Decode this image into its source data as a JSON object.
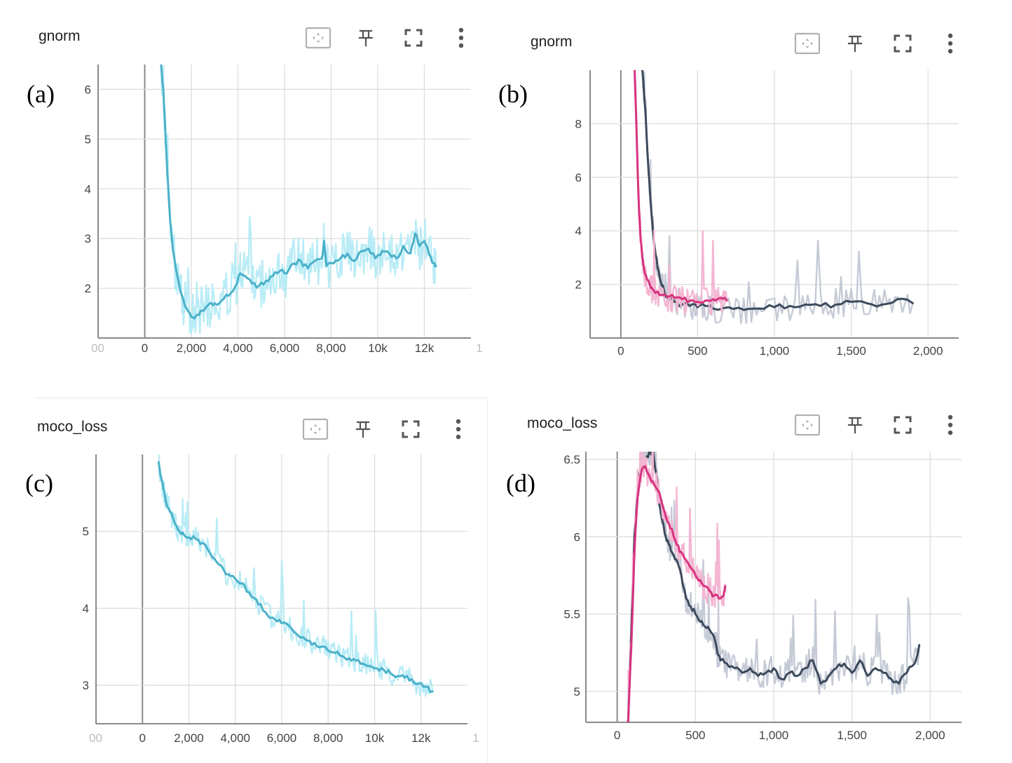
{
  "colors": {
    "cyan_smoothed": "#4bb1c9",
    "cyan_raw": "#b9ecf6",
    "pink_smoothed": "#d6337f",
    "pink_raw": "#f4b6d2",
    "slate_smoothed": "#3c4a5c",
    "slate_raw": "#c5cad6"
  },
  "toolbar": {
    "fit_icon": "fit-domain-icon",
    "pin_icon": "pin-icon",
    "fullscreen_icon": "fullscreen-icon",
    "menu_icon": "more-vert-icon"
  },
  "panels": [
    {
      "label": "(a)",
      "title": "gnorm"
    },
    {
      "label": "(b)",
      "title": "gnorm"
    },
    {
      "label": "(c)",
      "title": "moco_loss"
    },
    {
      "label": "(d)",
      "title": "moco_loss"
    }
  ],
  "chart_data": [
    {
      "type": "line",
      "panel": "(a)",
      "title": "gnorm",
      "grid": true,
      "xlim": [
        -2000,
        14000
      ],
      "ylim": [
        1,
        6.5
      ],
      "xticks": [
        0,
        2000,
        4000,
        6000,
        8000,
        10000,
        12000
      ],
      "xtick_labels": [
        "0",
        "2,000",
        "4,000",
        "6,000",
        "8,000",
        "10k",
        "12k"
      ],
      "xtick_partial_labels": [
        "00",
        "1"
      ],
      "yticks": [
        2,
        3,
        4,
        5,
        6
      ],
      "ytick_labels": [
        "2",
        "3",
        "4",
        "5",
        "6"
      ],
      "series": [
        {
          "color": "#4bb1c9",
          "raw_color": "#b9ecf6",
          "x": [
            700,
            800,
            900,
            1000,
            1100,
            1200,
            1400,
            1600,
            1800,
            2000,
            2200,
            2400,
            2600,
            2800,
            3000,
            3300,
            3600,
            3900,
            4100,
            4300,
            4600,
            4900,
            5200,
            5500,
            5800,
            6100,
            6400,
            6700,
            7000,
            7300,
            7600,
            7700,
            7800,
            8100,
            8400,
            8700,
            9000,
            9300,
            9600,
            9900,
            10200,
            10500,
            10800,
            11100,
            11400,
            11600,
            11800,
            12000,
            12200,
            12400,
            12500
          ],
          "y": [
            6.5,
            6.0,
            5.0,
            4.1,
            3.3,
            2.8,
            2.25,
            1.85,
            1.6,
            1.42,
            1.45,
            1.55,
            1.6,
            1.7,
            1.7,
            1.75,
            1.85,
            2.05,
            2.3,
            2.25,
            2.1,
            2.05,
            2.15,
            2.25,
            2.35,
            2.3,
            2.5,
            2.55,
            2.4,
            2.55,
            2.6,
            2.95,
            2.45,
            2.5,
            2.6,
            2.7,
            2.55,
            2.75,
            2.8,
            2.6,
            2.75,
            2.7,
            2.6,
            2.85,
            2.7,
            3.1,
            2.85,
            2.95,
            2.7,
            2.5,
            2.45
          ]
        }
      ]
    },
    {
      "type": "line",
      "panel": "(b)",
      "title": "gnorm",
      "grid": true,
      "xlim": [
        -200,
        2200
      ],
      "ylim": [
        0,
        10
      ],
      "xticks": [
        0,
        500,
        1000,
        1500,
        2000
      ],
      "xtick_labels": [
        "0",
        "500",
        "1,000",
        "1,500",
        "2,000"
      ],
      "yticks": [
        2,
        4,
        6,
        8
      ],
      "ytick_labels": [
        "2",
        "4",
        "6",
        "8"
      ],
      "series": [
        {
          "color": "#3c4a5c",
          "raw_color": "#c5cad6",
          "x": [
            140,
            160,
            180,
            200,
            220,
            240,
            260,
            280,
            300,
            350,
            400,
            450,
            500,
            550,
            600,
            700,
            800,
            900,
            1000,
            1100,
            1200,
            1300,
            1400,
            1500,
            1600,
            1700,
            1800,
            1900
          ],
          "y": [
            10,
            8.5,
            6.3,
            4.6,
            3.4,
            2.6,
            2.1,
            1.8,
            1.55,
            1.35,
            1.25,
            1.2,
            1.15,
            1.2,
            1.1,
            1.15,
            1.05,
            1.1,
            1.15,
            1.2,
            1.25,
            1.2,
            1.25,
            1.35,
            1.3,
            1.25,
            1.45,
            1.3
          ]
        },
        {
          "color": "#d6337f",
          "raw_color": "#f4b6d2",
          "x": [
            90,
            100,
            110,
            120,
            130,
            140,
            150,
            170,
            190,
            210,
            230,
            260,
            300,
            350,
            400,
            450,
            500,
            550,
            600,
            650,
            690
          ],
          "y": [
            10,
            8.2,
            6.2,
            4.6,
            3.6,
            3.0,
            2.6,
            2.2,
            1.95,
            1.8,
            1.7,
            1.6,
            1.55,
            1.5,
            1.45,
            1.4,
            1.35,
            1.4,
            1.45,
            1.5,
            1.4
          ]
        }
      ]
    },
    {
      "type": "line",
      "panel": "(c)",
      "title": "moco_loss",
      "grid": true,
      "xlim": [
        -2000,
        14000
      ],
      "ylim": [
        2.5,
        6
      ],
      "xticks": [
        0,
        2000,
        4000,
        6000,
        8000,
        10000,
        12000
      ],
      "xtick_labels": [
        "0",
        "2,000",
        "4,000",
        "6,000",
        "8,000",
        "10k",
        "12k"
      ],
      "xtick_partial_labels": [
        "00",
        "1"
      ],
      "yticks": [
        3,
        4,
        5
      ],
      "ytick_labels": [
        "3",
        "4",
        "5"
      ],
      "series": [
        {
          "color": "#4bb1c9",
          "raw_color": "#b9ecf6",
          "x": [
            700,
            800,
            900,
            1000,
            1200,
            1400,
            1600,
            1800,
            2000,
            2300,
            2600,
            2900,
            3200,
            3500,
            3800,
            4100,
            4400,
            4700,
            5000,
            5300,
            5600,
            5900,
            6200,
            6500,
            6800,
            7100,
            7400,
            7700,
            8000,
            8300,
            8600,
            8900,
            9200,
            9500,
            9800,
            10100,
            10400,
            10700,
            11000,
            11300,
            11600,
            11900,
            12200,
            12500
          ],
          "y": [
            5.9,
            5.7,
            5.55,
            5.4,
            5.25,
            5.1,
            5.0,
            4.95,
            4.92,
            4.9,
            4.85,
            4.72,
            4.6,
            4.5,
            4.42,
            4.35,
            4.3,
            4.15,
            4.05,
            3.95,
            3.88,
            3.85,
            3.8,
            3.7,
            3.62,
            3.58,
            3.55,
            3.5,
            3.45,
            3.42,
            3.38,
            3.35,
            3.32,
            3.28,
            3.25,
            3.22,
            3.2,
            3.15,
            3.12,
            3.1,
            3.08,
            3.02,
            2.98,
            2.92
          ]
        }
      ]
    },
    {
      "type": "line",
      "panel": "(d)",
      "title": "moco_loss",
      "grid": true,
      "xlim": [
        -200,
        2200
      ],
      "ylim": [
        4.8,
        6.55
      ],
      "xticks": [
        0,
        500,
        1000,
        1500,
        2000
      ],
      "xtick_labels": [
        "0",
        "500",
        "1,000",
        "1,500",
        "2,000"
      ],
      "yticks": [
        5,
        5.5,
        6,
        6.5
      ],
      "ytick_labels": [
        "5",
        "5.5",
        "6",
        "6.5"
      ],
      "series": [
        {
          "color": "#3c4a5c",
          "raw_color": "#c5cad6",
          "x": [
            70,
            90,
            110,
            130,
            150,
            170,
            190,
            210,
            230,
            250,
            270,
            290,
            310,
            330,
            350,
            380,
            410,
            440,
            470,
            500,
            530,
            560,
            590,
            620,
            640,
            660,
            700,
            750,
            800,
            850,
            900,
            950,
            1000,
            1050,
            1100,
            1150,
            1200,
            1250,
            1300,
            1350,
            1400,
            1450,
            1500,
            1550,
            1600,
            1650,
            1700,
            1750,
            1800,
            1850,
            1900,
            1930
          ],
          "y": [
            4.8,
            5.4,
            6.0,
            6.3,
            6.45,
            6.48,
            6.52,
            6.55,
            6.55,
            6.4,
            6.2,
            6.1,
            6.0,
            5.95,
            5.9,
            5.85,
            5.75,
            5.6,
            5.55,
            5.5,
            5.45,
            5.42,
            5.4,
            5.35,
            5.25,
            5.2,
            5.18,
            5.15,
            5.12,
            5.15,
            5.1,
            5.12,
            5.15,
            5.08,
            5.12,
            5.1,
            5.15,
            5.2,
            5.05,
            5.1,
            5.15,
            5.18,
            5.12,
            5.2,
            5.1,
            5.15,
            5.12,
            5.08,
            5.05,
            5.12,
            5.18,
            5.3
          ]
        },
        {
          "color": "#d6337f",
          "raw_color": "#f4b6d2",
          "x": [
            70,
            90,
            110,
            130,
            150,
            170,
            190,
            210,
            230,
            260,
            290,
            320,
            350,
            380,
            410,
            440,
            470,
            500,
            530,
            560,
            590,
            620,
            650,
            680,
            690
          ],
          "y": [
            4.8,
            5.3,
            5.9,
            6.25,
            6.4,
            6.45,
            6.42,
            6.38,
            6.35,
            6.3,
            6.2,
            6.1,
            6.05,
            5.95,
            5.9,
            5.85,
            5.8,
            5.75,
            5.72,
            5.68,
            5.65,
            5.62,
            5.6,
            5.62,
            5.68
          ]
        }
      ]
    }
  ]
}
